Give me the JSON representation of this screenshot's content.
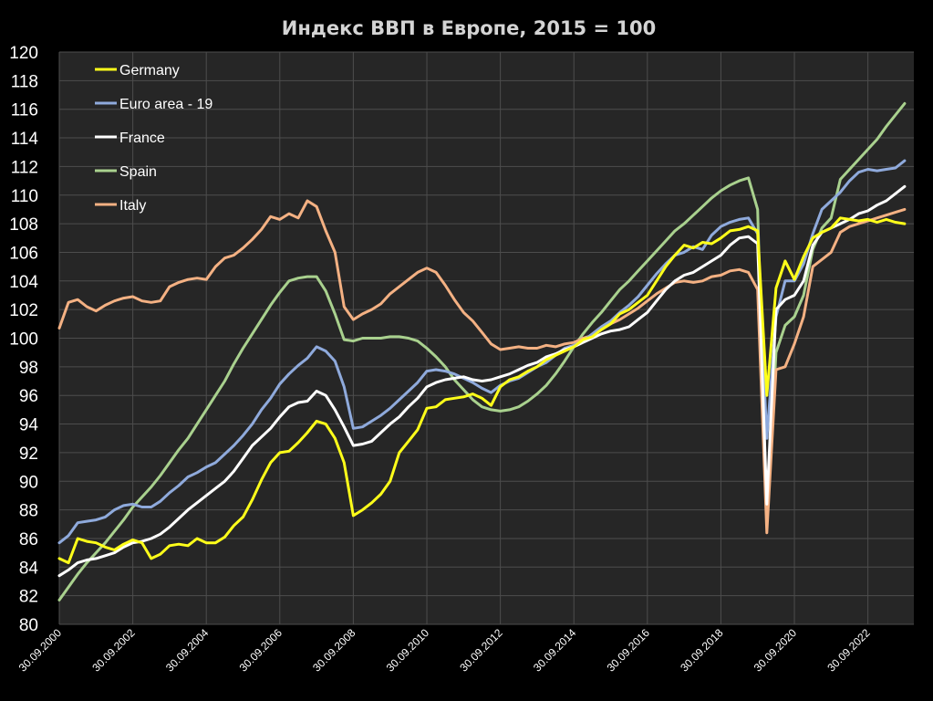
{
  "chart_data": {
    "type": "line",
    "title": "Индекс ВВП в Европе, 2015 = 100",
    "xlabel": "",
    "ylabel": "",
    "ylim": [
      80,
      120
    ],
    "yticks": [
      80,
      82,
      84,
      86,
      88,
      90,
      92,
      94,
      96,
      98,
      100,
      102,
      104,
      106,
      108,
      110,
      112,
      114,
      116,
      118,
      120
    ],
    "xlim": [
      2000.75,
      2024.0
    ],
    "xtick_labels": [
      "30.09.2000",
      "30.09.2002",
      "30.09.2004",
      "30.09.2006",
      "30.09.2008",
      "30.09.2010",
      "30.09.2012",
      "30.09.2014",
      "30.09.2016",
      "30.09.2018",
      "30.09.2020",
      "30.09.2022"
    ],
    "xtick_values": [
      2000.75,
      2002.75,
      2004.75,
      2006.75,
      2008.75,
      2010.75,
      2012.75,
      2014.75,
      2016.75,
      2018.75,
      2020.75,
      2022.75
    ],
    "grid": true,
    "legend_position": "top-left",
    "colors": {
      "background": "#000000",
      "plot_area": "#262626",
      "grid": "#4d4d4d",
      "text": "#ffffff",
      "title": "#d4d4d4"
    },
    "series": [
      {
        "name": "Germany",
        "color": "#ffff1a",
        "x": [
          2000.75,
          2001.0,
          2001.25,
          2001.5,
          2001.75,
          2002.0,
          2002.25,
          2002.5,
          2002.75,
          2003.0,
          2003.25,
          2003.5,
          2003.75,
          2004.0,
          2004.25,
          2004.5,
          2004.75,
          2005.0,
          2005.25,
          2005.5,
          2005.75,
          2006.0,
          2006.25,
          2006.5,
          2006.75,
          2007.0,
          2007.25,
          2007.5,
          2007.75,
          2008.0,
          2008.25,
          2008.5,
          2008.75,
          2009.0,
          2009.25,
          2009.5,
          2009.75,
          2010.0,
          2010.25,
          2010.5,
          2010.75,
          2011.0,
          2011.25,
          2011.5,
          2011.75,
          2012.0,
          2012.25,
          2012.5,
          2012.75,
          2013.0,
          2013.25,
          2013.5,
          2013.75,
          2014.0,
          2014.25,
          2014.5,
          2014.75,
          2015.0,
          2015.25,
          2015.5,
          2015.75,
          2016.0,
          2016.25,
          2016.5,
          2016.75,
          2017.0,
          2017.25,
          2017.5,
          2017.75,
          2018.0,
          2018.25,
          2018.5,
          2018.75,
          2019.0,
          2019.25,
          2019.5,
          2019.75,
          2020.0,
          2020.25,
          2020.5,
          2020.75,
          2021.0,
          2021.25,
          2021.5,
          2021.75,
          2022.0,
          2022.25,
          2022.5,
          2022.75,
          2023.0,
          2023.25,
          2023.5,
          2023.75
        ],
        "values": [
          84.6,
          84.3,
          86.0,
          85.8,
          85.7,
          85.4,
          85.2,
          85.6,
          85.9,
          85.7,
          84.6,
          84.9,
          85.5,
          85.6,
          85.5,
          86.0,
          85.7,
          85.7,
          86.1,
          86.9,
          87.5,
          88.7,
          90.1,
          91.3,
          92.0,
          92.1,
          92.7,
          93.4,
          94.2,
          94.0,
          93.0,
          91.3,
          87.6,
          88.0,
          88.5,
          89.1,
          90.0,
          92.0,
          92.8,
          93.6,
          95.1,
          95.2,
          95.7,
          95.8,
          95.9,
          96.1,
          95.8,
          95.3,
          96.6,
          97.1,
          97.3,
          97.7,
          98.0,
          98.5,
          98.8,
          99.1,
          99.4,
          99.9,
          100.1,
          100.6,
          101.0,
          101.7,
          102.0,
          102.5,
          103.0,
          104.0,
          105.0,
          105.8,
          106.5,
          106.3,
          106.7,
          106.6,
          107.0,
          107.5,
          107.6,
          107.8,
          107.5,
          96.0,
          103.5,
          105.4,
          104.1,
          105.7,
          107.0,
          107.4,
          107.7,
          108.4,
          108.3,
          108.2,
          108.3,
          108.1,
          108.3,
          108.1,
          108.0
        ]
      },
      {
        "name": "Euro area - 19",
        "color": "#8faadc",
        "x": [
          2000.75,
          2001.0,
          2001.25,
          2001.5,
          2001.75,
          2002.0,
          2002.25,
          2002.5,
          2002.75,
          2003.0,
          2003.25,
          2003.5,
          2003.75,
          2004.0,
          2004.25,
          2004.5,
          2004.75,
          2005.0,
          2005.25,
          2005.5,
          2005.75,
          2006.0,
          2006.25,
          2006.5,
          2006.75,
          2007.0,
          2007.25,
          2007.5,
          2007.75,
          2008.0,
          2008.25,
          2008.5,
          2008.75,
          2009.0,
          2009.25,
          2009.5,
          2009.75,
          2010.0,
          2010.25,
          2010.5,
          2010.75,
          2011.0,
          2011.25,
          2011.5,
          2011.75,
          2012.0,
          2012.25,
          2012.5,
          2012.75,
          2013.0,
          2013.25,
          2013.5,
          2013.75,
          2014.0,
          2014.25,
          2014.5,
          2014.75,
          2015.0,
          2015.25,
          2015.5,
          2015.75,
          2016.0,
          2016.25,
          2016.5,
          2016.75,
          2017.0,
          2017.25,
          2017.5,
          2017.75,
          2018.0,
          2018.25,
          2018.5,
          2018.75,
          2019.0,
          2019.25,
          2019.5,
          2019.75,
          2020.0,
          2020.25,
          2020.5,
          2020.75,
          2021.0,
          2021.25,
          2021.5,
          2021.75,
          2022.0,
          2022.25,
          2022.5,
          2022.75,
          2023.0,
          2023.25,
          2023.5,
          2023.75
        ],
        "values": [
          85.7,
          86.2,
          87.1,
          87.2,
          87.3,
          87.5,
          88.0,
          88.3,
          88.4,
          88.2,
          88.2,
          88.6,
          89.2,
          89.7,
          90.3,
          90.6,
          91.0,
          91.3,
          91.9,
          92.5,
          93.2,
          94.0,
          95.0,
          95.8,
          96.8,
          97.5,
          98.1,
          98.6,
          99.4,
          99.1,
          98.4,
          96.6,
          93.7,
          93.8,
          94.2,
          94.6,
          95.1,
          95.7,
          96.3,
          96.9,
          97.7,
          97.8,
          97.7,
          97.5,
          97.2,
          96.9,
          96.5,
          96.2,
          96.7,
          97.0,
          97.2,
          97.6,
          98.0,
          98.3,
          98.8,
          99.3,
          99.5,
          99.8,
          100.3,
          100.8,
          101.2,
          101.8,
          102.3,
          102.9,
          103.7,
          104.5,
          105.2,
          105.8,
          106.0,
          106.4,
          106.2,
          107.2,
          107.8,
          108.1,
          108.3,
          108.4,
          107.3,
          93.0,
          101.5,
          104.0,
          104.0,
          105.2,
          107.3,
          109.0,
          109.6,
          110.2,
          111.0,
          111.6,
          111.8,
          111.7,
          111.8,
          111.9,
          112.4
        ]
      },
      {
        "name": "France",
        "color": "#ffffff",
        "x": [
          2000.75,
          2001.0,
          2001.25,
          2001.5,
          2001.75,
          2002.0,
          2002.25,
          2002.5,
          2002.75,
          2003.0,
          2003.25,
          2003.5,
          2003.75,
          2004.0,
          2004.25,
          2004.5,
          2004.75,
          2005.0,
          2005.25,
          2005.5,
          2005.75,
          2006.0,
          2006.25,
          2006.5,
          2006.75,
          2007.0,
          2007.25,
          2007.5,
          2007.75,
          2008.0,
          2008.25,
          2008.5,
          2008.75,
          2009.0,
          2009.25,
          2009.5,
          2009.75,
          2010.0,
          2010.25,
          2010.5,
          2010.75,
          2011.0,
          2011.25,
          2011.5,
          2011.75,
          2012.0,
          2012.25,
          2012.5,
          2012.75,
          2013.0,
          2013.25,
          2013.5,
          2013.75,
          2014.0,
          2014.25,
          2014.5,
          2014.75,
          2015.0,
          2015.25,
          2015.5,
          2015.75,
          2016.0,
          2016.25,
          2016.5,
          2016.75,
          2017.0,
          2017.25,
          2017.5,
          2017.75,
          2018.0,
          2018.25,
          2018.5,
          2018.75,
          2019.0,
          2019.25,
          2019.5,
          2019.75,
          2020.0,
          2020.25,
          2020.5,
          2020.75,
          2021.0,
          2021.25,
          2021.5,
          2021.75,
          2022.0,
          2022.25,
          2022.5,
          2022.75,
          2023.0,
          2023.25,
          2023.5,
          2023.75
        ],
        "values": [
          83.4,
          83.8,
          84.3,
          84.5,
          84.6,
          84.8,
          85.0,
          85.4,
          85.7,
          85.8,
          86.0,
          86.3,
          86.8,
          87.4,
          88.0,
          88.5,
          89.0,
          89.5,
          90.0,
          90.7,
          91.6,
          92.5,
          93.1,
          93.7,
          94.5,
          95.2,
          95.5,
          95.6,
          96.3,
          96.0,
          95.0,
          93.8,
          92.5,
          92.6,
          92.8,
          93.4,
          94.0,
          94.5,
          95.2,
          95.8,
          96.6,
          96.9,
          97.1,
          97.2,
          97.3,
          97.1,
          97.0,
          97.1,
          97.3,
          97.5,
          97.8,
          98.1,
          98.3,
          98.7,
          98.9,
          99.2,
          99.4,
          99.7,
          100.0,
          100.3,
          100.5,
          100.6,
          100.8,
          101.3,
          101.8,
          102.6,
          103.4,
          104.0,
          104.4,
          104.6,
          105.0,
          105.4,
          105.8,
          106.5,
          107.0,
          107.1,
          106.6,
          88.4,
          102.0,
          102.7,
          103.0,
          104.0,
          106.5,
          107.4,
          107.7,
          108.0,
          108.3,
          108.7,
          108.9,
          109.3,
          109.6,
          110.1,
          110.6
        ]
      },
      {
        "name": "Spain",
        "color": "#a9d18e",
        "x": [
          2000.75,
          2001.0,
          2001.25,
          2001.5,
          2001.75,
          2002.0,
          2002.25,
          2002.5,
          2002.75,
          2003.0,
          2003.25,
          2003.5,
          2003.75,
          2004.0,
          2004.25,
          2004.5,
          2004.75,
          2005.0,
          2005.25,
          2005.5,
          2005.75,
          2006.0,
          2006.25,
          2006.5,
          2006.75,
          2007.0,
          2007.25,
          2007.5,
          2007.75,
          2008.0,
          2008.25,
          2008.5,
          2008.75,
          2009.0,
          2009.25,
          2009.5,
          2009.75,
          2010.0,
          2010.25,
          2010.5,
          2010.75,
          2011.0,
          2011.25,
          2011.5,
          2011.75,
          2012.0,
          2012.25,
          2012.5,
          2012.75,
          2013.0,
          2013.25,
          2013.5,
          2013.75,
          2014.0,
          2014.25,
          2014.5,
          2014.75,
          2015.0,
          2015.25,
          2015.5,
          2015.75,
          2016.0,
          2016.25,
          2016.5,
          2016.75,
          2017.0,
          2017.25,
          2017.5,
          2017.75,
          2018.0,
          2018.25,
          2018.5,
          2018.75,
          2019.0,
          2019.25,
          2019.5,
          2019.75,
          2020.0,
          2020.25,
          2020.5,
          2020.75,
          2021.0,
          2021.25,
          2021.5,
          2021.75,
          2022.0,
          2022.25,
          2022.5,
          2022.75,
          2023.0,
          2023.25,
          2023.5,
          2023.75
        ],
        "values": [
          81.7,
          82.6,
          83.5,
          84.3,
          85.0,
          85.7,
          86.5,
          87.3,
          88.2,
          88.9,
          89.6,
          90.4,
          91.3,
          92.2,
          93.0,
          94.0,
          95.0,
          96.0,
          97.0,
          98.2,
          99.3,
          100.3,
          101.3,
          102.3,
          103.2,
          104.0,
          104.2,
          104.3,
          104.3,
          103.3,
          101.7,
          99.9,
          99.8,
          100.0,
          100.0,
          100.0,
          100.1,
          100.1,
          100.0,
          99.8,
          99.3,
          98.7,
          98.0,
          97.1,
          96.4,
          95.7,
          95.2,
          95.0,
          94.9,
          95.0,
          95.2,
          95.6,
          96.1,
          96.7,
          97.5,
          98.4,
          99.4,
          100.3,
          101.1,
          101.8,
          102.6,
          103.4,
          104.0,
          104.7,
          105.4,
          106.1,
          106.8,
          107.5,
          108.0,
          108.6,
          109.2,
          109.8,
          110.3,
          110.7,
          111.0,
          111.2,
          109.0,
          87.0,
          99.0,
          100.9,
          101.5,
          103.0,
          106.2,
          107.7,
          108.4,
          111.1,
          111.8,
          112.5,
          113.2,
          113.9,
          114.8,
          115.6,
          116.4
        ]
      },
      {
        "name": "Italy",
        "color": "#f4b183",
        "x": [
          2000.75,
          2001.0,
          2001.25,
          2001.5,
          2001.75,
          2002.0,
          2002.25,
          2002.5,
          2002.75,
          2003.0,
          2003.25,
          2003.5,
          2003.75,
          2004.0,
          2004.25,
          2004.5,
          2004.75,
          2005.0,
          2005.25,
          2005.5,
          2005.75,
          2006.0,
          2006.25,
          2006.5,
          2006.75,
          2007.0,
          2007.25,
          2007.5,
          2007.75,
          2008.0,
          2008.25,
          2008.5,
          2008.75,
          2009.0,
          2009.25,
          2009.5,
          2009.75,
          2010.0,
          2010.25,
          2010.5,
          2010.75,
          2011.0,
          2011.25,
          2011.5,
          2011.75,
          2012.0,
          2012.25,
          2012.5,
          2012.75,
          2013.0,
          2013.25,
          2013.5,
          2013.75,
          2014.0,
          2014.25,
          2014.5,
          2014.75,
          2015.0,
          2015.25,
          2015.5,
          2015.75,
          2016.0,
          2016.25,
          2016.5,
          2016.75,
          2017.0,
          2017.25,
          2017.5,
          2017.75,
          2018.0,
          2018.25,
          2018.5,
          2018.75,
          2019.0,
          2019.25,
          2019.5,
          2019.75,
          2020.0,
          2020.25,
          2020.5,
          2020.75,
          2021.0,
          2021.25,
          2021.5,
          2021.75,
          2022.0,
          2022.25,
          2022.5,
          2022.75,
          2023.0,
          2023.25,
          2023.5,
          2023.75
        ],
        "values": [
          100.7,
          102.5,
          102.7,
          102.2,
          101.9,
          102.3,
          102.6,
          102.8,
          102.9,
          102.6,
          102.5,
          102.6,
          103.6,
          103.9,
          104.1,
          104.2,
          104.1,
          105.0,
          105.6,
          105.8,
          106.3,
          106.9,
          107.6,
          108.5,
          108.3,
          108.7,
          108.4,
          109.6,
          109.2,
          107.5,
          106.0,
          102.2,
          101.3,
          101.7,
          102.0,
          102.4,
          103.1,
          103.6,
          104.1,
          104.6,
          104.9,
          104.6,
          103.7,
          102.7,
          101.8,
          101.2,
          100.4,
          99.6,
          99.2,
          99.3,
          99.4,
          99.3,
          99.3,
          99.5,
          99.4,
          99.6,
          99.7,
          100.0,
          100.2,
          100.6,
          101.0,
          101.3,
          101.7,
          102.1,
          102.6,
          103.1,
          103.5,
          103.9,
          104.0,
          103.9,
          104.0,
          104.3,
          104.4,
          104.7,
          104.8,
          104.6,
          103.4,
          86.4,
          97.8,
          98.0,
          99.6,
          101.5,
          105.0,
          105.5,
          106.0,
          107.4,
          107.8,
          108.0,
          108.2,
          108.4,
          108.6,
          108.8,
          109.0
        ]
      }
    ]
  }
}
